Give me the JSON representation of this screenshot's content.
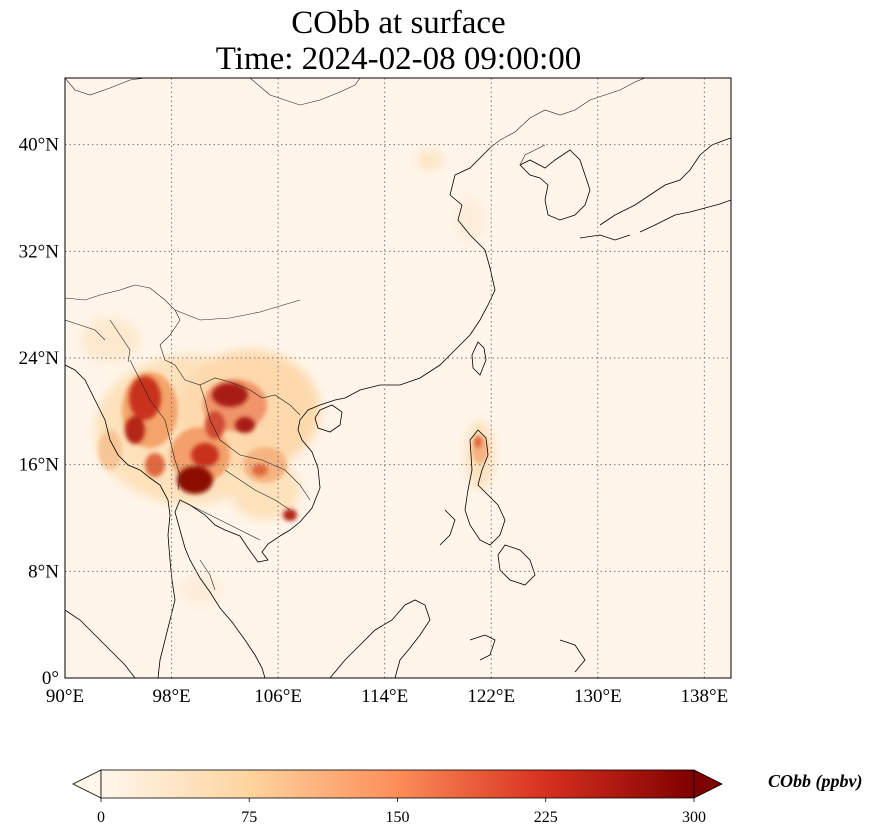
{
  "title": {
    "line1": "CObb at surface",
    "line2": "Time: 2024-02-08 09:00:00"
  },
  "map": {
    "longitude_range": [
      90,
      140
    ],
    "latitude_range": [
      0,
      45
    ],
    "background_color": "#fff5ea",
    "gridlines": "dotted",
    "lon_ticks": [
      {
        "value": 90,
        "label": "90°E"
      },
      {
        "value": 98,
        "label": "98°E"
      },
      {
        "value": 106,
        "label": "106°E"
      },
      {
        "value": 114,
        "label": "114°E"
      },
      {
        "value": 122,
        "label": "122°E"
      },
      {
        "value": 130,
        "label": "130°E"
      },
      {
        "value": 138,
        "label": "138°E"
      }
    ],
    "lat_ticks": [
      {
        "value": 0,
        "label": "0°"
      },
      {
        "value": 8,
        "label": "8°N"
      },
      {
        "value": 16,
        "label": "16°N"
      },
      {
        "value": 24,
        "label": "24°N"
      },
      {
        "value": 32,
        "label": "32°N"
      },
      {
        "value": 40,
        "label": "40°N"
      }
    ]
  },
  "colorbar": {
    "title": "CObb (ppbv)",
    "colormap": "OrRd",
    "extend": "both",
    "range": [
      0,
      300
    ],
    "ticks": [
      {
        "value": 0,
        "label": "0"
      },
      {
        "value": 75,
        "label": "75"
      },
      {
        "value": 150,
        "label": "150"
      },
      {
        "value": 225,
        "label": "225"
      },
      {
        "value": 300,
        "label": "300"
      }
    ],
    "colors": [
      "#fff7ec",
      "#fdd49e",
      "#fc8d59",
      "#d7301f",
      "#7f0000"
    ]
  }
}
